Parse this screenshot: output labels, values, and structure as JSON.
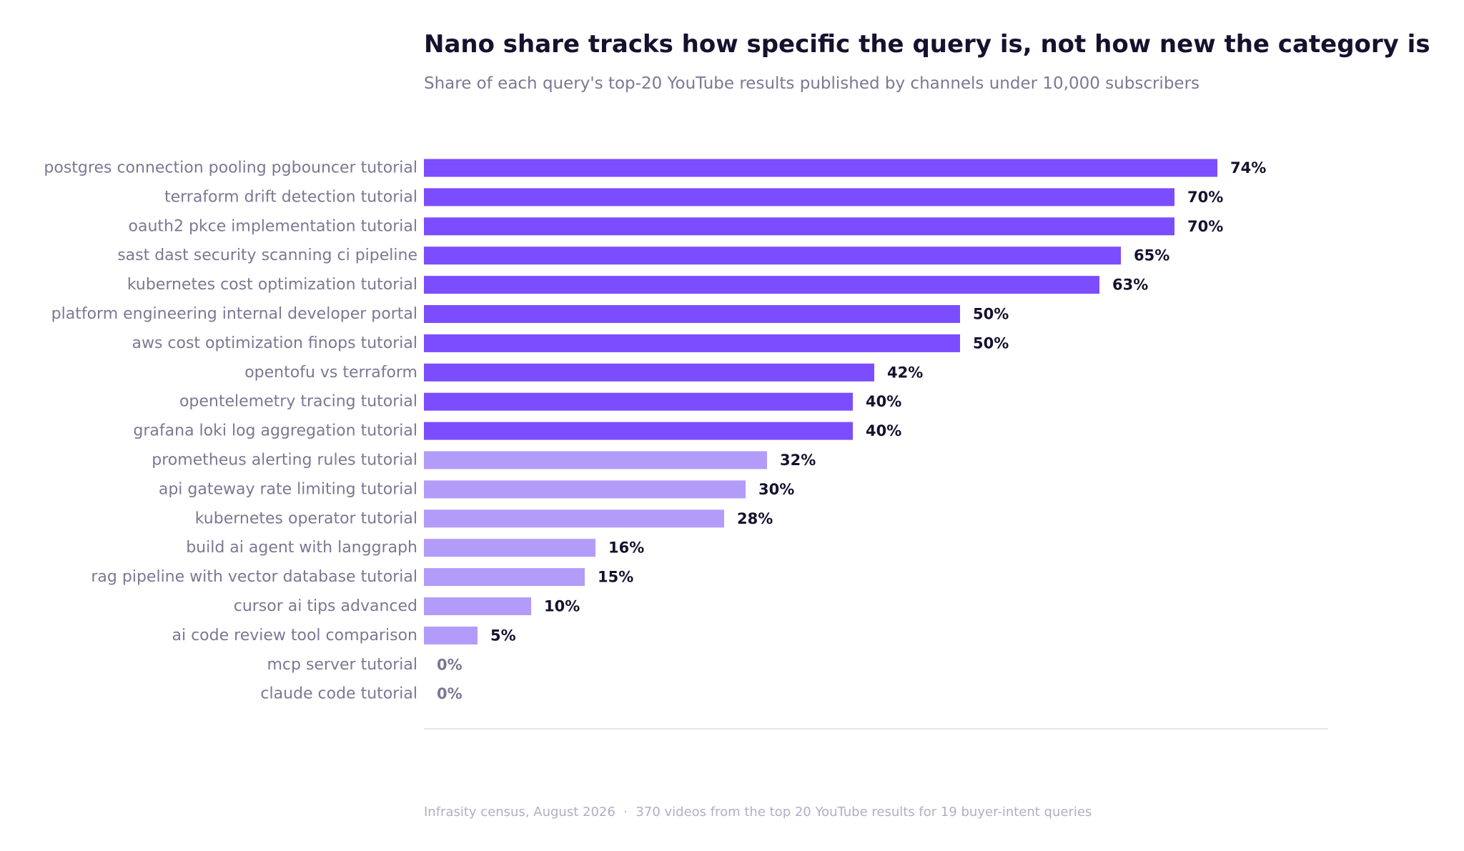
{
  "chart_data": {
    "type": "bar",
    "orientation": "horizontal",
    "title": "Nano share tracks how specific the query is, not how new the category is",
    "subtitle": "Share of each query's top-20 YouTube results published by channels under 10,000 subscribers",
    "footnote": "Infrasity census, August 2026  ·  370 videos from the top 20 YouTube results for 19 buyer-intent queries",
    "categories": [
      "postgres connection pooling pgbouncer tutorial",
      "terraform drift detection tutorial",
      "oauth2 pkce implementation tutorial",
      "sast dast security scanning ci pipeline",
      "kubernetes cost optimization tutorial",
      "platform engineering internal developer portal",
      "aws cost optimization finops tutorial",
      "opentofu vs terraform",
      "opentelemetry tracing tutorial",
      "grafana loki log aggregation tutorial",
      "prometheus alerting rules tutorial",
      "api gateway rate limiting tutorial",
      "kubernetes operator tutorial",
      "build ai agent with langgraph",
      "rag pipeline with vector database tutorial",
      "cursor ai tips advanced",
      "ai code review tool comparison",
      "mcp server tutorial",
      "claude code tutorial"
    ],
    "values": [
      74,
      70,
      70,
      65,
      63,
      50,
      50,
      42,
      40,
      40,
      32,
      30,
      28,
      16,
      15,
      10,
      5,
      0,
      0
    ],
    "value_labels": [
      "74%",
      "70%",
      "70%",
      "65%",
      "63%",
      "50%",
      "50%",
      "42%",
      "40%",
      "40%",
      "32%",
      "30%",
      "28%",
      "16%",
      "15%",
      "10%",
      "5%",
      "0%",
      "0%"
    ],
    "highlight_threshold": 40,
    "xlim": [
      0,
      84
    ],
    "grid": false,
    "legend": "none",
    "colors": {
      "bar_high": "#7c4dff",
      "bar_low": "#b39bf9",
      "value_text": "#15122e",
      "zero_value_text": "#7b7893",
      "category_text": "#7b7893",
      "axis_line": "#e3e1ea"
    }
  }
}
